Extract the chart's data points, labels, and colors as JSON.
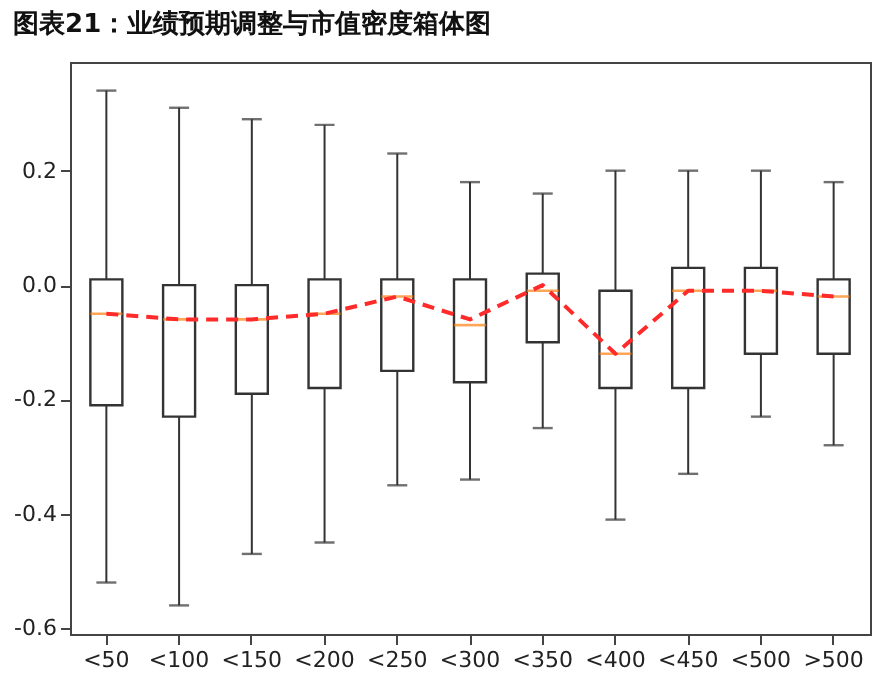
{
  "chart_data": {
    "type": "box",
    "title": "图表21：业绩预期调整与市值密度箱体图",
    "categories": [
      "<50",
      "<100",
      "<150",
      "<200",
      "<250",
      "<300",
      "<350",
      "<400",
      "<450",
      "<500",
      ">500"
    ],
    "ylim": [
      -0.61,
      0.39
    ],
    "yticks": [
      -0.6,
      -0.4,
      -0.2,
      {
        "value": 0,
        "label": "0.0"
      },
      0.2
    ],
    "grid": false,
    "series": [
      {
        "color": "#333333",
        "boxes": [
          {
            "low": -0.52,
            "q1": -0.21,
            "median": -0.05,
            "q3": 0.01,
            "high": 0.34
          },
          {
            "low": -0.56,
            "q1": -0.23,
            "median": -0.06,
            "q3": 0.0,
            "high": 0.31
          },
          {
            "low": -0.47,
            "q1": -0.19,
            "median": -0.06,
            "q3": 0.0,
            "high": 0.29
          },
          {
            "low": -0.45,
            "q1": -0.18,
            "median": -0.05,
            "q3": 0.01,
            "high": 0.28
          },
          {
            "low": -0.35,
            "q1": -0.15,
            "median": -0.02,
            "q3": 0.01,
            "high": 0.23
          },
          {
            "low": -0.34,
            "q1": -0.17,
            "median": -0.07,
            "q3": 0.01,
            "high": 0.18
          },
          {
            "low": -0.25,
            "q1": -0.1,
            "median": -0.01,
            "q3": 0.02,
            "high": 0.16
          },
          {
            "low": -0.41,
            "q1": -0.18,
            "median": -0.12,
            "q3": -0.01,
            "high": 0.2
          },
          {
            "low": -0.33,
            "q1": -0.18,
            "median": -0.01,
            "q3": 0.03,
            "high": 0.2
          },
          {
            "low": -0.23,
            "q1": -0.12,
            "median": -0.01,
            "q3": 0.03,
            "high": 0.2
          },
          {
            "low": -0.28,
            "q1": -0.12,
            "median": -0.02,
            "q3": 0.01,
            "high": 0.18
          }
        ]
      },
      {
        "type": "line",
        "color": "#ff2a2a",
        "line_style": "dashed",
        "values": [
          -0.05,
          -0.06,
          -0.06,
          -0.05,
          -0.02,
          -0.06,
          0.0,
          -0.12,
          -0.01,
          -0.01,
          -0.02
        ]
      }
    ]
  }
}
